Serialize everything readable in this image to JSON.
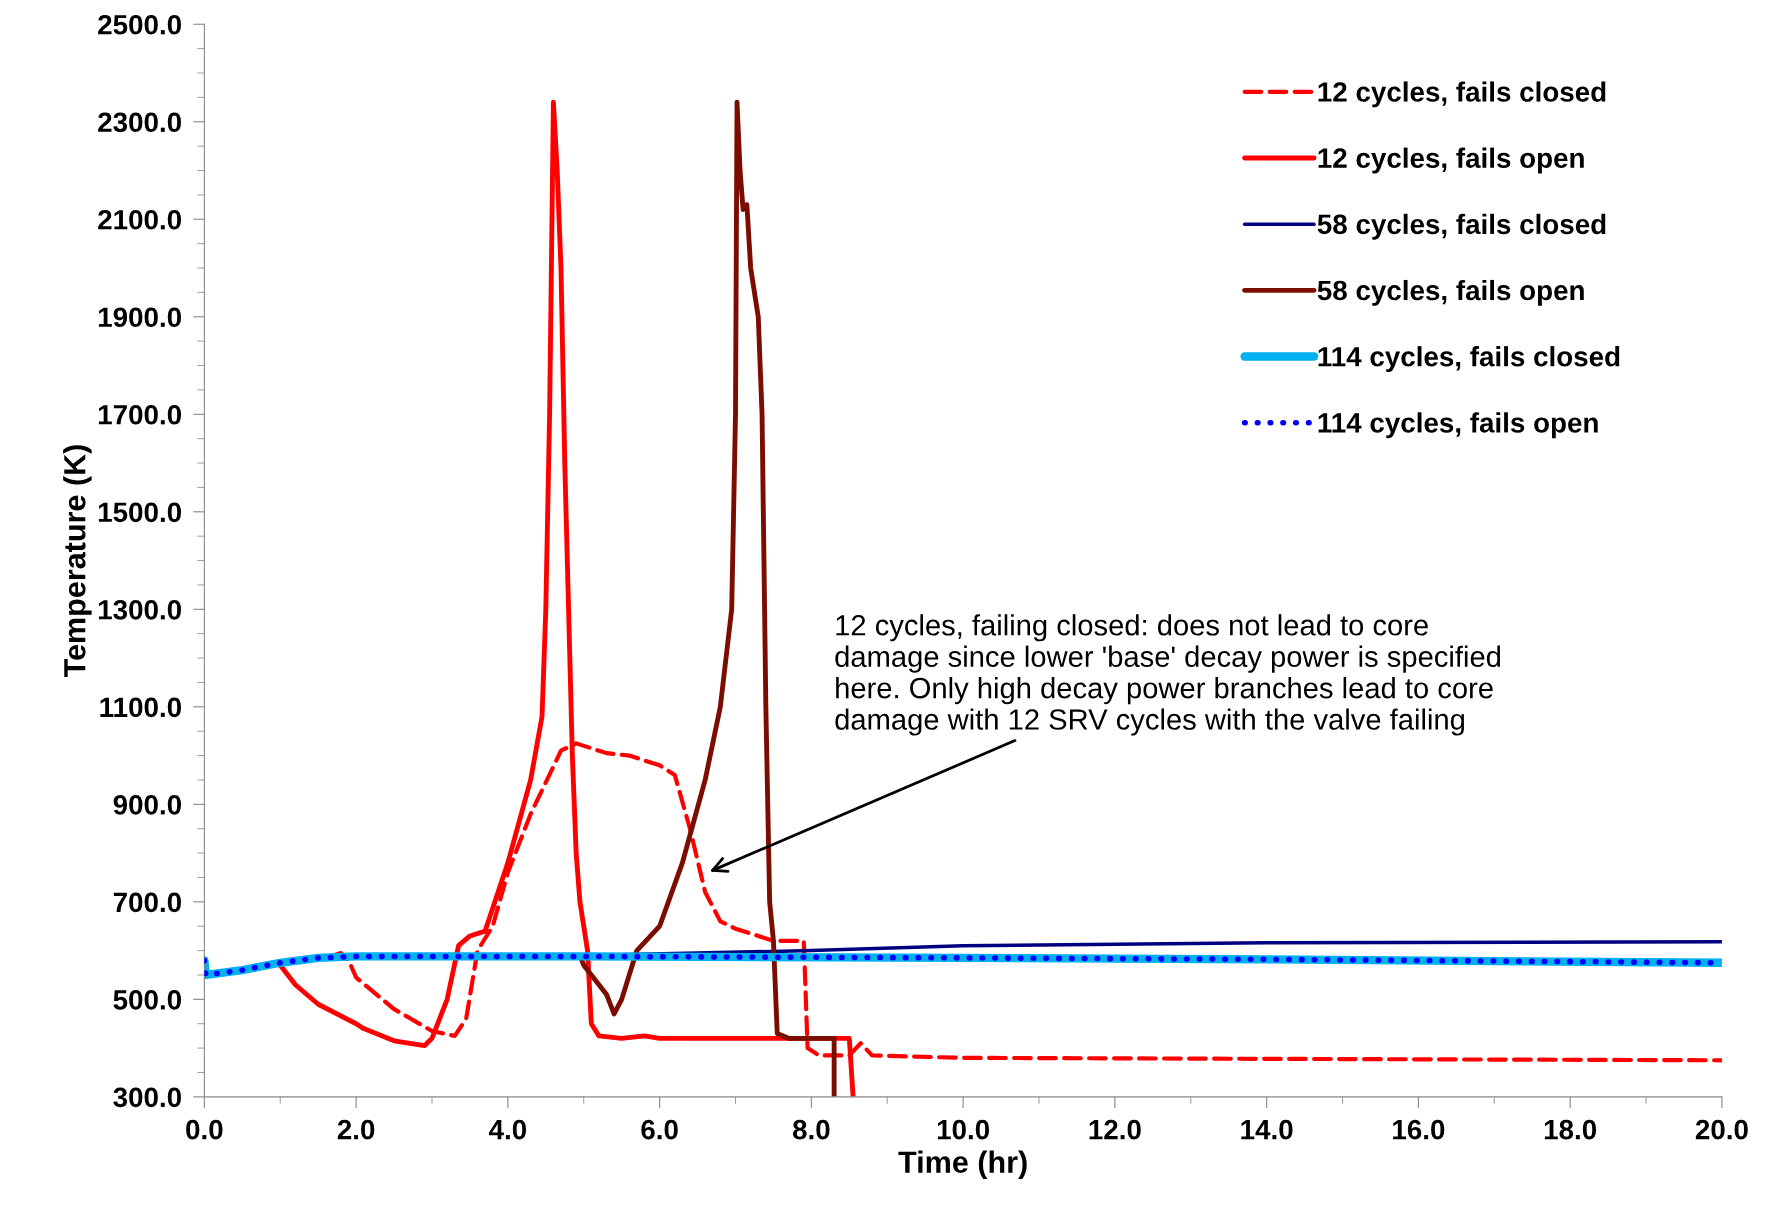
{
  "chart_data": {
    "type": "line",
    "xlabel": "Time (hr)",
    "ylabel": "Temperature (K)",
    "legend": "top right",
    "grid": false,
    "marker": "none",
    "xlim": [
      0,
      20
    ],
    "ylim": [
      300,
      2500
    ],
    "xticks": [
      {
        "value": 0,
        "label": "0.0"
      },
      {
        "value": 2,
        "label": "2.0"
      },
      {
        "value": 4,
        "label": "4.0"
      },
      {
        "value": 6,
        "label": "6.0"
      },
      {
        "value": 8,
        "label": "8.0"
      },
      {
        "value": 10,
        "label": "10.0"
      },
      {
        "value": 12,
        "label": "12.0"
      },
      {
        "value": 14,
        "label": "14.0"
      },
      {
        "value": 16,
        "label": "16.0"
      },
      {
        "value": 18,
        "label": "18.0"
      },
      {
        "value": 20,
        "label": "20.0"
      }
    ],
    "yticks": [
      {
        "value": 300,
        "label": "300.0"
      },
      {
        "value": 500,
        "label": "500.0"
      },
      {
        "value": 700,
        "label": "700.0"
      },
      {
        "value": 900,
        "label": "900.0"
      },
      {
        "value": 1100,
        "label": "1100.0"
      },
      {
        "value": 1300,
        "label": "1300.0"
      },
      {
        "value": 1500,
        "label": "1500.0"
      },
      {
        "value": 1700,
        "label": "1700.0"
      },
      {
        "value": 1900,
        "label": "1900.0"
      },
      {
        "value": 2100,
        "label": "2100.0"
      },
      {
        "value": 2300,
        "label": "2300.0"
      },
      {
        "value": 2500,
        "label": "2500.0"
      }
    ],
    "series": [
      {
        "name": "12 cycles, fails closed",
        "color": "#ff0000",
        "line_style": "dashed",
        "x": [
          1.7,
          1.8,
          1.9,
          2.0,
          2.5,
          3.0,
          3.3,
          3.45,
          3.6,
          3.8,
          4.0,
          4.3,
          4.7,
          4.9,
          5.3,
          5.6,
          6.0,
          6.2,
          6.4,
          6.6,
          6.8,
          7.0,
          7.3,
          7.5,
          7.9,
          7.95,
          8.1,
          8.5,
          8.65,
          8.8,
          10,
          14,
          20
        ],
        "values": [
          590,
          595,
          580,
          545,
          480,
          435,
          425,
          460,
          600,
          650,
          760,
          880,
          1010,
          1025,
          1005,
          1000,
          980,
          960,
          850,
          720,
          660,
          645,
          630,
          620,
          620,
          400,
          385,
          385,
          410,
          385,
          380,
          378,
          375
        ]
      },
      {
        "name": "12 cycles, fails open",
        "color": "#ff0000",
        "line_style": "solid",
        "x": [
          1.0,
          1.2,
          1.5,
          2.0,
          2.1,
          2.5,
          2.9,
          3.0,
          3.2,
          3.35,
          3.5,
          3.7,
          4.0,
          4.3,
          4.45,
          4.5,
          4.55,
          4.6,
          4.65,
          4.7,
          4.75,
          4.8,
          4.85,
          4.9,
          4.95,
          5.05,
          5.1,
          5.2,
          5.5,
          5.8,
          6.0,
          8.5,
          8.55
        ],
        "values": [
          570,
          530,
          490,
          450,
          440,
          415,
          405,
          420,
          500,
          610,
          630,
          640,
          780,
          950,
          1080,
          1300,
          1700,
          2340,
          2200,
          2000,
          1600,
          1300,
          1000,
          800,
          700,
          600,
          450,
          425,
          420,
          425,
          420,
          420,
          300
        ]
      },
      {
        "name": "58 cycles, fails closed",
        "color": "#000080",
        "line_style": "solid",
        "x": [
          0,
          0.02,
          0.5,
          1.0,
          1.5,
          2,
          5,
          8,
          10,
          14,
          20
        ],
        "values": [
          580,
          550,
          560,
          575,
          585,
          588,
          590,
          600,
          610,
          616,
          618
        ]
      },
      {
        "name": "58 cycles, fails open",
        "color": "#7b0c00",
        "line_style": "solid",
        "x": [
          4.95,
          5.0,
          5.2,
          5.3,
          5.4,
          5.5,
          5.7,
          6.0,
          6.3,
          6.6,
          6.8,
          6.95,
          7.0,
          7.02,
          7.06,
          7.1,
          7.15,
          7.2,
          7.3,
          7.35,
          7.4,
          7.45,
          7.5,
          7.55,
          7.7,
          8.3,
          8.3
        ],
        "values": [
          590,
          570,
          530,
          510,
          470,
          500,
          600,
          650,
          780,
          950,
          1100,
          1300,
          1700,
          2340,
          2200,
          2120,
          2130,
          2000,
          1900,
          1700,
          1100,
          700,
          620,
          430,
          420,
          420,
          300
        ]
      },
      {
        "name": "114 cycles, fails closed",
        "color": "#00b0f0",
        "line_style": "solid",
        "x": [
          0,
          0.02,
          0.5,
          1.0,
          1.5,
          2,
          5,
          10,
          14,
          20
        ],
        "values": [
          580,
          550,
          560,
          575,
          585,
          588,
          588,
          585,
          582,
          575
        ]
      },
      {
        "name": "114 cycles, fails open",
        "color": "#0000ff",
        "line_style": "dotted",
        "x": [
          0,
          0.02,
          0.5,
          1.0,
          1.5,
          2,
          5,
          10,
          14,
          20
        ],
        "values": [
          580,
          550,
          560,
          575,
          585,
          588,
          588,
          585,
          582,
          575
        ]
      }
    ],
    "annotations": [
      "12 cycles, failing closed: does not lead to core\ndamage since lower 'base' decay power is specified\nhere. Only high decay power branches lead to core\ndamage with 12 SRV cycles with the valve failing"
    ]
  }
}
